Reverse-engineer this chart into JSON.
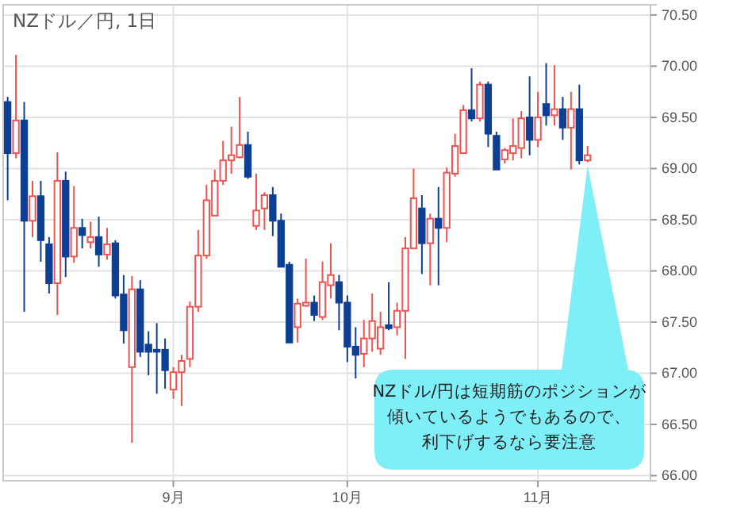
{
  "chart_data": {
    "type": "candlestick",
    "title": "NZドル／円, 1日",
    "categories": [
      null,
      null,
      null,
      null,
      null,
      null,
      null,
      null,
      null,
      null,
      null,
      null,
      null,
      null,
      null,
      null,
      null,
      null,
      null,
      null,
      "9月",
      null,
      null,
      null,
      null,
      null,
      null,
      null,
      null,
      null,
      null,
      null,
      null,
      null,
      null,
      null,
      null,
      null,
      null,
      null,
      null,
      "10月",
      null,
      null,
      null,
      null,
      null,
      null,
      null,
      null,
      null,
      null,
      null,
      null,
      null,
      null,
      null,
      null,
      null,
      null,
      null,
      null,
      null,
      null,
      "11月",
      null,
      null,
      null,
      null,
      null,
      null
    ],
    "ohlc": [
      [
        69.65,
        69.7,
        68.69,
        69.15
      ],
      [
        69.15,
        70.11,
        69.1,
        69.47
      ],
      [
        69.47,
        69.65,
        67.6,
        68.49
      ],
      [
        68.49,
        68.88,
        68.33,
        68.73
      ],
      [
        68.73,
        68.88,
        68.09,
        68.3
      ],
      [
        68.26,
        68.33,
        67.78,
        67.88
      ],
      [
        67.88,
        69.16,
        67.57,
        68.88
      ],
      [
        68.88,
        68.97,
        67.94,
        68.14
      ],
      [
        68.14,
        68.83,
        68.08,
        68.42
      ],
      [
        68.42,
        68.51,
        68.22,
        68.35
      ],
      [
        68.28,
        68.48,
        68.22,
        68.33
      ],
      [
        68.33,
        68.53,
        68.04,
        68.16
      ],
      [
        68.16,
        68.42,
        68.11,
        68.26
      ],
      [
        68.27,
        68.3,
        67.73,
        67.76
      ],
      [
        67.77,
        67.96,
        67.29,
        67.42
      ],
      [
        67.06,
        67.95,
        66.32,
        67.82
      ],
      [
        67.82,
        67.91,
        67.16,
        67.21
      ],
      [
        67.28,
        67.41,
        66.98,
        67.21
      ],
      [
        67.23,
        67.49,
        66.8,
        67.21
      ],
      [
        67.23,
        67.34,
        66.85,
        67.03
      ],
      [
        66.84,
        67.06,
        66.75,
        67.01
      ],
      [
        67.01,
        67.18,
        66.68,
        67.12
      ],
      [
        67.14,
        67.7,
        67.06,
        67.65
      ],
      [
        67.65,
        68.4,
        67.6,
        68.15
      ],
      [
        68.15,
        68.84,
        68.12,
        68.69
      ],
      [
        68.54,
        68.99,
        68.54,
        68.88
      ],
      [
        68.88,
        69.27,
        68.84,
        69.08
      ],
      [
        69.08,
        69.41,
        68.95,
        69.13
      ],
      [
        69.11,
        69.7,
        69.1,
        69.23
      ],
      [
        69.23,
        69.36,
        68.9,
        68.92
      ],
      [
        68.44,
        68.95,
        68.4,
        68.59
      ],
      [
        68.61,
        68.77,
        68.4,
        68.74
      ],
      [
        68.74,
        68.82,
        68.34,
        68.49
      ],
      [
        68.49,
        68.56,
        68.04,
        68.04
      ],
      [
        68.06,
        68.09,
        67.3,
        67.3
      ],
      [
        67.45,
        67.73,
        67.3,
        67.68
      ],
      [
        67.66,
        68.12,
        67.65,
        67.69
      ],
      [
        67.69,
        67.76,
        67.51,
        67.57
      ],
      [
        67.55,
        68.09,
        67.52,
        67.89
      ],
      [
        67.86,
        68.27,
        67.73,
        67.96
      ],
      [
        67.89,
        67.96,
        67.42,
        67.69
      ],
      [
        67.69,
        67.76,
        67.11,
        67.26
      ],
      [
        67.26,
        67.45,
        66.95,
        67.18
      ],
      [
        67.19,
        67.52,
        67.06,
        67.34
      ],
      [
        67.34,
        67.78,
        67.21,
        67.51
      ],
      [
        67.24,
        67.6,
        67.18,
        67.45
      ],
      [
        67.47,
        67.89,
        67.42,
        67.44
      ],
      [
        67.45,
        67.69,
        67.37,
        67.61
      ],
      [
        67.61,
        68.33,
        67.14,
        68.22
      ],
      [
        68.22,
        69.0,
        68.22,
        68.71
      ],
      [
        68.61,
        68.74,
        67.97,
        68.27
      ],
      [
        68.27,
        68.56,
        67.86,
        68.51
      ],
      [
        68.51,
        68.82,
        67.86,
        68.42
      ],
      [
        68.42,
        69.01,
        68.28,
        68.96
      ],
      [
        68.95,
        69.34,
        68.92,
        69.22
      ],
      [
        69.15,
        69.62,
        69.15,
        69.57
      ],
      [
        69.57,
        69.98,
        69.46,
        69.49
      ],
      [
        69.49,
        69.85,
        69.46,
        69.82
      ],
      [
        69.82,
        69.85,
        69.21,
        69.34
      ],
      [
        69.32,
        69.36,
        68.99,
        68.99
      ],
      [
        69.09,
        69.2,
        69.05,
        69.18
      ],
      [
        69.15,
        69.49,
        69.08,
        69.22
      ],
      [
        69.2,
        69.56,
        69.1,
        69.49
      ],
      [
        69.5,
        69.9,
        69.13,
        69.28
      ],
      [
        69.28,
        69.75,
        69.21,
        69.5
      ],
      [
        69.63,
        70.03,
        69.42,
        69.52
      ],
      [
        69.52,
        70.01,
        69.42,
        69.58
      ],
      [
        69.58,
        69.7,
        69.28,
        69.4
      ],
      [
        69.4,
        69.75,
        68.99,
        69.58
      ],
      [
        69.58,
        69.82,
        69.04,
        69.08
      ],
      [
        69.08,
        69.22,
        69.06,
        69.13
      ]
    ],
    "ylim": [
      65.95,
      70.6
    ],
    "yticks": [
      {
        "value": 66,
        "label": "66.00"
      },
      {
        "value": 66.5,
        "label": "66.50"
      },
      {
        "value": 67,
        "label": "67.00"
      },
      {
        "value": 67.5,
        "label": "67.50"
      },
      {
        "value": 68,
        "label": "68.00"
      },
      {
        "value": 68.5,
        "label": "68.50"
      },
      {
        "value": 69,
        "label": "69.00"
      },
      {
        "value": 69.5,
        "label": "69.50"
      },
      {
        "value": 70,
        "label": "70.00"
      },
      {
        "value": 70.5,
        "label": "70.50"
      }
    ],
    "grid": true,
    "annotations": [
      "NZドル/円は短期筋のポジションが",
      "傾いているようでもあるので、",
      "利下げするなら要注意"
    ]
  }
}
